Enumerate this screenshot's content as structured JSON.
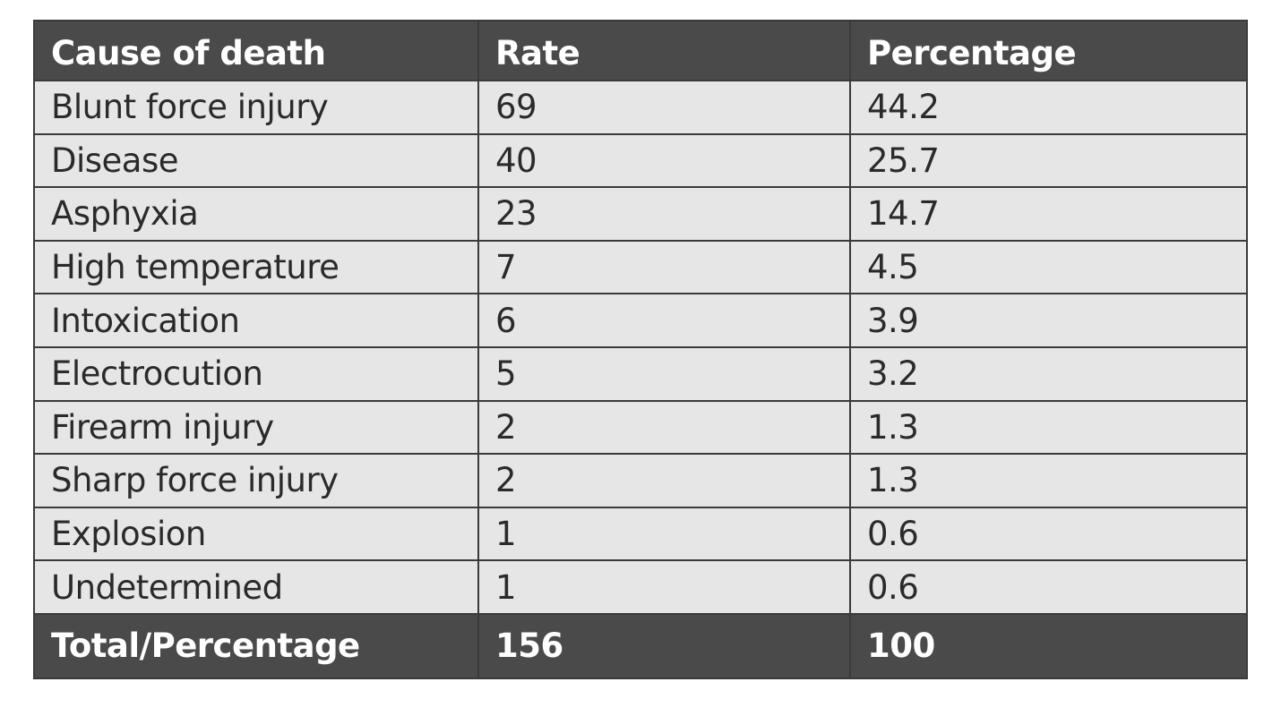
{
  "table": {
    "headers": [
      "Cause of death",
      "Rate",
      "Percentage"
    ],
    "rows": [
      {
        "cause": "Blunt force injury",
        "rate": "69",
        "percentage": "44.2"
      },
      {
        "cause": "Disease",
        "rate": "40",
        "percentage": "25.7"
      },
      {
        "cause": "Asphyxia",
        "rate": "23",
        "percentage": "14.7"
      },
      {
        "cause": "High temperature",
        "rate": "7",
        "percentage": "4.5"
      },
      {
        "cause": "Intoxication",
        "rate": "6",
        "percentage": "3.9"
      },
      {
        "cause": "Electrocution",
        "rate": "5",
        "percentage": "3.2"
      },
      {
        "cause": "Firearm injury",
        "rate": "2",
        "percentage": "1.3"
      },
      {
        "cause": "Sharp force injury",
        "rate": "2",
        "percentage": "1.3"
      },
      {
        "cause": "Explosion",
        "rate": "1",
        "percentage": "0.6"
      },
      {
        "cause": "Undetermined",
        "rate": "1",
        "percentage": "0.6"
      }
    ],
    "total": {
      "label": "Total/Percentage",
      "rate": "156",
      "percentage": "100"
    }
  }
}
